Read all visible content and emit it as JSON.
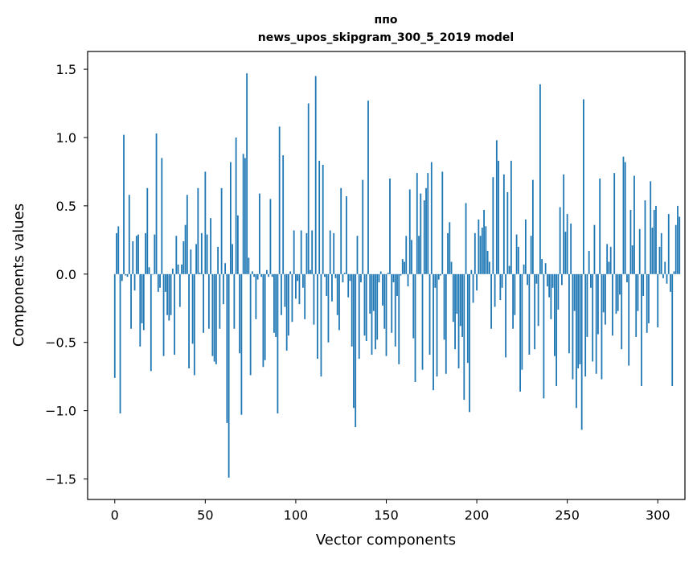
{
  "chart_data": {
    "type": "bar",
    "title_line1": "ппо",
    "title_line2": "news_upos_skipgram_300_5_2019 model",
    "xlabel": "Vector components",
    "ylabel": "Components values",
    "xlim": [
      -15,
      315
    ],
    "ylim": [
      -1.65,
      1.63
    ],
    "xticks": [
      0,
      50,
      100,
      150,
      200,
      250,
      300
    ],
    "yticks": [
      -1.5,
      -1.0,
      -0.5,
      0.0,
      0.5,
      1.0,
      1.5
    ],
    "xtick_labels": [
      "0",
      "50",
      "100",
      "150",
      "200",
      "250",
      "300"
    ],
    "ytick_labels": [
      "−1.5",
      "−1.0",
      "−0.5",
      "0.0",
      "0.5",
      "1.0",
      "1.5"
    ],
    "grid": false,
    "bar_color": "#1f77b4",
    "values": [
      -0.76,
      0.3,
      0.35,
      -1.02,
      -0.05,
      1.02,
      -0.01,
      -0.02,
      0.58,
      -0.4,
      0.24,
      -0.12,
      0.28,
      0.29,
      -0.53,
      -0.36,
      -0.41,
      0.3,
      0.63,
      0.05,
      -0.71,
      0.0,
      0.29,
      1.03,
      -0.13,
      -0.1,
      0.85,
      -0.6,
      -0.13,
      -0.3,
      -0.34,
      -0.3,
      0.04,
      -0.59,
      0.28,
      0.07,
      -0.24,
      0.07,
      0.24,
      0.36,
      0.58,
      -0.69,
      0.18,
      -0.51,
      -0.74,
      0.22,
      0.63,
      0.01,
      0.3,
      -0.43,
      0.75,
      0.29,
      -0.4,
      0.41,
      -0.6,
      -0.64,
      -0.66,
      0.2,
      -0.4,
      0.63,
      -0.22,
      0.08,
      -1.09,
      -1.49,
      0.82,
      0.22,
      -0.4,
      1.0,
      0.43,
      -0.58,
      -1.03,
      0.88,
      0.85,
      1.47,
      0.12,
      -0.74,
      0.02,
      -0.02,
      -0.33,
      -0.04,
      0.59,
      -0.02,
      -0.68,
      -0.63,
      0.03,
      -0.02,
      0.55,
      -0.02,
      -0.43,
      -0.46,
      -1.02,
      1.08,
      -0.3,
      0.87,
      -0.24,
      -0.56,
      -0.45,
      0.02,
      -0.35,
      0.32,
      -0.18,
      -0.05,
      -0.22,
      0.32,
      -0.1,
      -0.33,
      0.3,
      1.25,
      0.03,
      0.32,
      -0.37,
      1.45,
      -0.62,
      0.83,
      -0.75,
      0.8,
      -0.02,
      -0.16,
      -0.5,
      0.32,
      -0.2,
      0.3,
      -0.03,
      -0.3,
      -0.41,
      0.63,
      -0.06,
      0.01,
      0.57,
      -0.17,
      -0.05,
      -0.53,
      -0.98,
      -1.12,
      0.28,
      -0.62,
      -0.06,
      0.69,
      -0.45,
      -0.49,
      1.27,
      -0.29,
      -0.59,
      -0.27,
      -0.55,
      -0.48,
      -0.06,
      0.02,
      -0.23,
      -0.4,
      -0.6,
      0.01,
      0.7,
      -0.43,
      -0.06,
      -0.53,
      -0.16,
      -0.66,
      -0.01,
      0.11,
      0.09,
      0.28,
      -0.09,
      0.62,
      0.25,
      -0.47,
      -0.79,
      0.74,
      0.28,
      0.59,
      -0.7,
      0.54,
      0.63,
      0.74,
      -0.59,
      0.82,
      -0.85,
      -0.1,
      -0.75,
      -0.04,
      -0.01,
      0.75,
      -0.48,
      -0.73,
      0.3,
      0.38,
      0.09,
      -0.35,
      -0.55,
      -0.29,
      -0.69,
      -0.38,
      -0.46,
      -0.92,
      0.52,
      -0.65,
      -1.01,
      0.03,
      -0.21,
      0.3,
      -0.12,
      0.4,
      0.28,
      0.34,
      0.47,
      0.35,
      0.17,
      0.09,
      -0.4,
      0.71,
      -0.24,
      0.98,
      0.83,
      -0.19,
      -0.1,
      0.73,
      -0.61,
      0.6,
      0.06,
      0.83,
      -0.4,
      -0.3,
      0.29,
      0.2,
      -0.86,
      -0.7,
      0.07,
      0.4,
      -0.08,
      -0.59,
      0.28,
      0.69,
      -0.55,
      -0.07,
      -0.38,
      1.39,
      0.11,
      -0.91,
      0.08,
      -0.09,
      -0.17,
      -0.33,
      -0.1,
      -0.6,
      -0.82,
      -0.26,
      0.49,
      -0.08,
      0.73,
      0.31,
      0.44,
      -0.58,
      0.37,
      -0.77,
      -0.27,
      -0.98,
      -0.69,
      -0.66,
      -1.14,
      1.28,
      -0.75,
      -0.46,
      0.17,
      -0.1,
      -0.64,
      0.36,
      -0.73,
      -0.44,
      0.7,
      -0.77,
      -0.28,
      -0.37,
      0.22,
      0.09,
      0.2,
      -0.45,
      0.74,
      -0.29,
      -0.27,
      -0.15,
      -0.55,
      0.86,
      0.82,
      -0.06,
      -0.67,
      0.47,
      0.21,
      0.72,
      -0.46,
      -0.27,
      0.33,
      -0.82,
      -0.16,
      0.54,
      -0.43,
      -0.36,
      0.68,
      0.34,
      0.47,
      0.5,
      -0.39,
      0.2,
      0.3,
      -0.03,
      0.09,
      -0.07,
      0.44,
      -0.13,
      -0.82,
      0.02,
      0.36,
      0.5,
      0.42
    ]
  }
}
